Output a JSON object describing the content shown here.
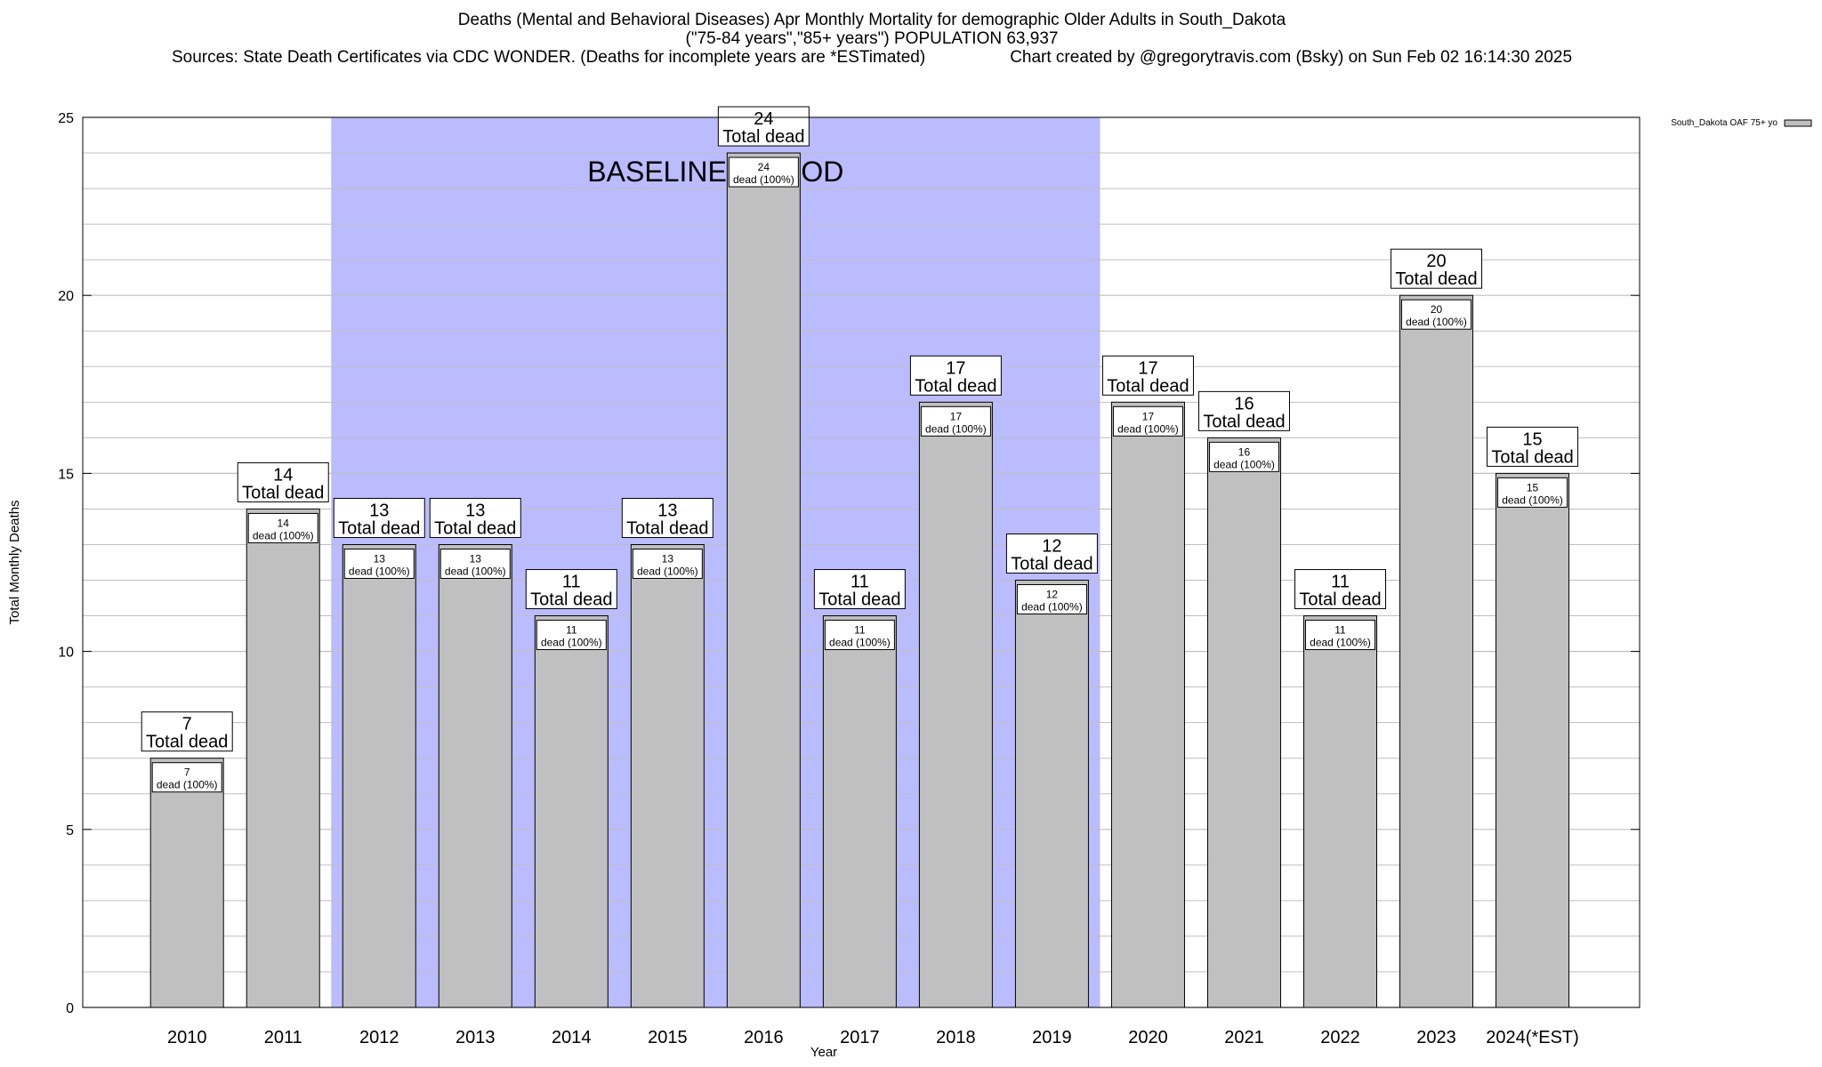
{
  "header": {
    "title_line1": "Deaths (Mental and Behavioral Diseases) Apr Monthly Mortality for demographic Older Adults in South_Dakota",
    "title_line2": "(\"75-84 years\",\"85+ years\") POPULATION 63,937",
    "sources": "Sources: State Death Certificates via CDC WONDER. (Deaths for incomplete years are *ESTimated)",
    "credit": "Chart created by @gregorytravis.com (Bsky) on Sun Feb 02 16:14:30 2025"
  },
  "colors": {
    "bar_fill": "#c0c0c0",
    "baseline_fill": "#bbbbff",
    "grid": "#bfbfbf"
  },
  "chart_data": {
    "type": "bar",
    "categories": [
      "2010",
      "2011",
      "2012",
      "2013",
      "2014",
      "2015",
      "2016",
      "2017",
      "2018",
      "2019",
      "2020",
      "2021",
      "2022",
      "2023",
      "2024(*EST)"
    ],
    "series": [
      {
        "name": "South_Dakota OAF 75+ yo",
        "values": [
          7,
          14,
          13,
          13,
          11,
          13,
          24,
          11,
          17,
          12,
          17,
          16,
          11,
          20,
          15
        ]
      }
    ],
    "xlabel": "Year",
    "ylabel": "Total Monthly Deaths",
    "ylim": [
      0,
      25
    ],
    "yticks": [
      0,
      5,
      10,
      15,
      20,
      25
    ],
    "minor_grid_step": 1,
    "grid": true,
    "legend_position": "top-right",
    "baseline_period": {
      "label": "BASELINE PERIOD",
      "start": "2012",
      "end": "2019"
    },
    "bar_labels": {
      "total_text": "Total dead",
      "inner_text": "dead (100%)"
    }
  }
}
